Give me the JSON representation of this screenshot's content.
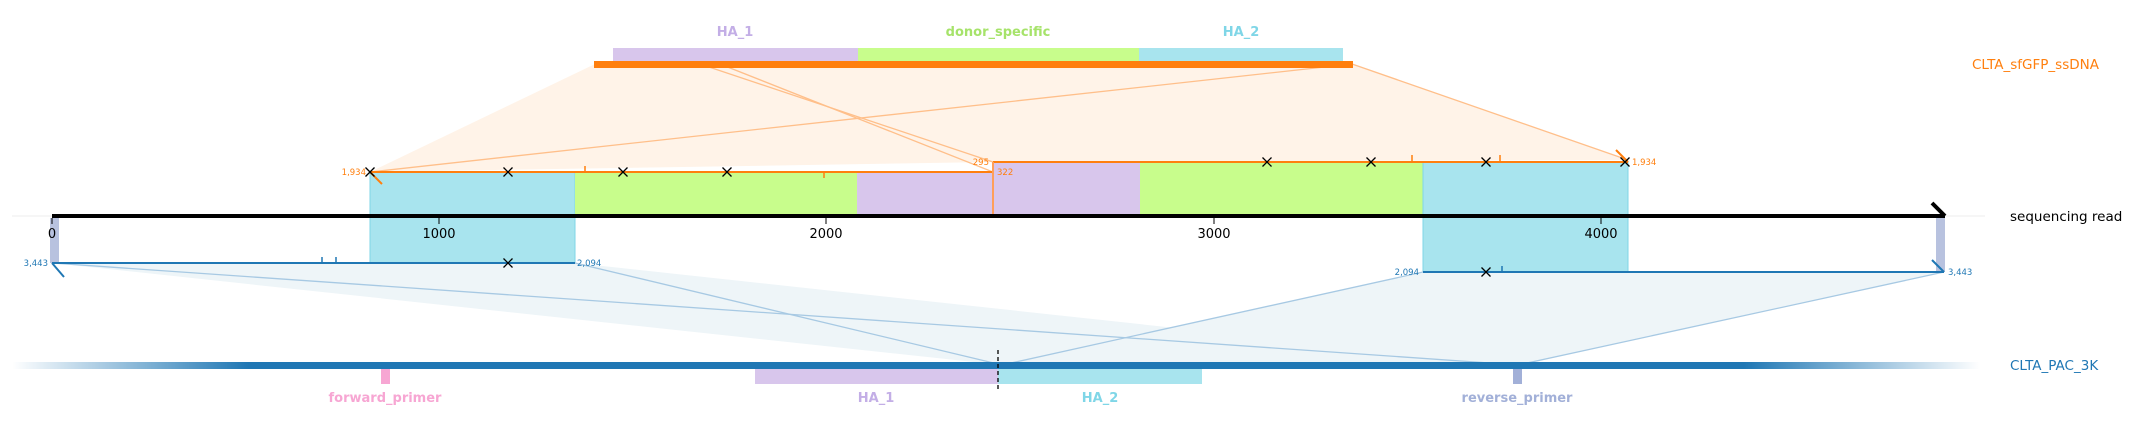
{
  "colors": {
    "ha1": "#d8c6ec",
    "ha1_label": "#c3aee6",
    "donor": "#c8fd8c",
    "donor_label": "#a6e36a",
    "ha2": "#a8e4ee",
    "ha2_label": "#7fd6e7",
    "donor_line": "#ff7f0e",
    "donor_fill": "#fff3e8",
    "target_line": "#1f77b4",
    "target_fill": "#eef5f8",
    "fwd_primer": "#f7a6d3",
    "rev_primer": "#a2b0d8",
    "read": "#000000"
  },
  "donor": {
    "name": "CLTA_sfGFP_ssDNA",
    "features": [
      {
        "label": "HA_1",
        "color_key": "ha1"
      },
      {
        "label": "donor_specific",
        "color_key": "donor"
      },
      {
        "label": "HA_2",
        "color_key": "ha2"
      }
    ]
  },
  "read": {
    "label": "sequencing read",
    "ticks": [
      "0",
      "1000",
      "2000",
      "3000",
      "4000"
    ]
  },
  "donor_alignment_labels": [
    "1,934",
    "295",
    "322",
    "1,934"
  ],
  "target_alignment_labels": [
    "3,443",
    "2,094",
    "2,094",
    "3,443"
  ],
  "target": {
    "name": "CLTA_PAC_3K",
    "features": [
      {
        "label": "forward_primer",
        "color_key": "fwd_primer"
      },
      {
        "label": "HA_1",
        "color_key": "ha1"
      },
      {
        "label": "HA_2",
        "color_key": "ha2"
      },
      {
        "label": "reverse_primer",
        "color_key": "rev_primer"
      }
    ]
  }
}
